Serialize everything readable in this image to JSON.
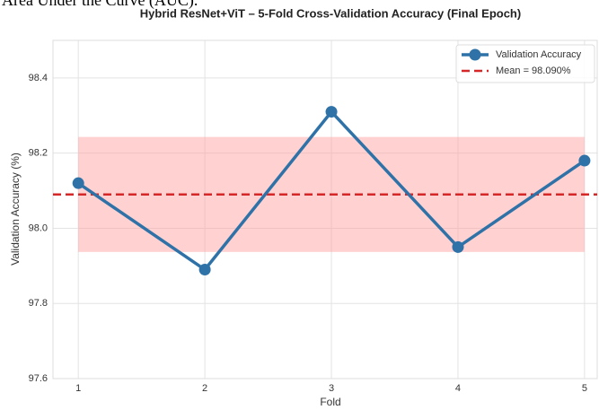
{
  "page_fragment": "Area Under the Curve (AUC).",
  "chart_data": {
    "type": "line",
    "title": "Hybrid ResNet+ViT – 5-Fold Cross-Validation Accuracy (Final Epoch)",
    "x_label": "Fold",
    "y_label": "Validation Accuracy (%)",
    "x": [
      1,
      2,
      3,
      4,
      5
    ],
    "series": [
      {
        "name": "Validation Accuracy",
        "color": "#2e72a8",
        "values": [
          98.12,
          97.89,
          98.31,
          97.95,
          98.18
        ]
      }
    ],
    "mean": {
      "name": "Mean = 98.090%",
      "value": 98.09,
      "color": "#d62728"
    },
    "shaded_range": {
      "low": 97.937,
      "high": 98.243,
      "color": "#ff9a9a"
    },
    "xlim": [
      0.8,
      5.1
    ],
    "xticks": [
      1,
      2,
      3,
      4,
      5
    ],
    "ylim": [
      97.6,
      98.5
    ],
    "yticks": [
      97.6,
      97.8,
      {
        "value": 98,
        "label": "98.0"
      },
      98.2,
      98.4
    ],
    "grid": true,
    "legend": "upper right"
  }
}
